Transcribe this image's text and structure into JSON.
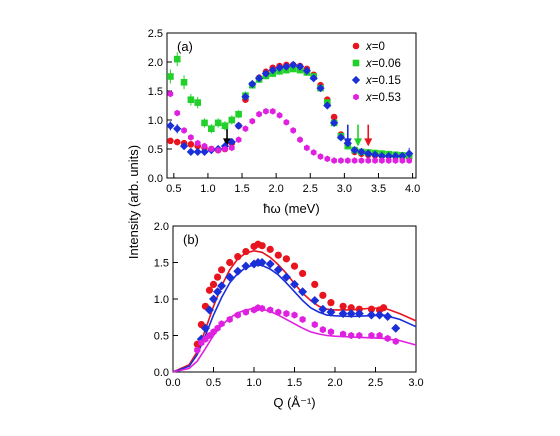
{
  "figure": {
    "ylabel": "Intensity (arb. units)"
  },
  "chart_data": [
    {
      "type": "scatter",
      "panel_label": "(a)",
      "xlabel": "ħω (meV)",
      "xlim": [
        0.4,
        4.05
      ],
      "ylim": [
        0.0,
        2.5
      ],
      "xticks": [
        "0.5",
        "1.0",
        "1.5",
        "2.0",
        "2.5",
        "3.0",
        "3.5",
        "4.0"
      ],
      "yticks": [
        "0.0",
        "0.5",
        "1.0",
        "1.5",
        "2.0",
        "2.5"
      ],
      "legend_position": "top-right",
      "series": [
        {
          "name": "x=0",
          "label_var": "x",
          "label_val": "=0",
          "color": "#e8141e",
          "marker": "circle",
          "x": [
            0.45,
            0.55,
            0.65,
            0.75,
            0.85,
            0.95,
            1.05,
            1.15,
            1.25,
            1.35,
            1.45,
            1.55,
            1.65,
            1.75,
            1.85,
            1.95,
            2.05,
            2.15,
            2.25,
            2.35,
            2.45,
            2.55,
            2.65,
            2.75,
            2.85,
            2.95,
            3.05,
            3.15,
            3.25,
            3.35,
            3.45,
            3.55,
            3.65,
            3.75,
            3.85,
            3.95
          ],
          "y": [
            0.64,
            0.62,
            0.6,
            0.58,
            0.55,
            0.52,
            0.5,
            0.48,
            0.5,
            0.6,
            0.9,
            1.35,
            1.6,
            1.73,
            1.83,
            1.9,
            1.93,
            1.95,
            1.95,
            1.93,
            1.88,
            1.78,
            1.6,
            1.35,
            1.05,
            0.75,
            0.55,
            0.45,
            0.42,
            0.4,
            0.39,
            0.38,
            0.38,
            0.37,
            0.37,
            0.37
          ]
        },
        {
          "name": "x=0.06",
          "label_var": "x",
          "label_val": "=0.06",
          "color": "#22d02a",
          "marker": "square",
          "x": [
            0.45,
            0.55,
            0.65,
            0.75,
            0.85,
            0.95,
            1.05,
            1.15,
            1.25,
            1.35,
            1.45,
            1.55,
            1.65,
            1.75,
            1.85,
            1.95,
            2.05,
            2.15,
            2.25,
            2.35,
            2.45,
            2.55,
            2.65,
            2.75,
            2.85,
            2.95,
            3.05,
            3.15,
            3.25,
            3.35,
            3.45,
            3.55,
            3.65,
            3.75,
            3.85,
            3.95
          ],
          "y": [
            1.75,
            2.05,
            1.65,
            1.35,
            1.3,
            0.95,
            0.85,
            0.95,
            0.9,
            1.0,
            1.1,
            1.42,
            1.6,
            1.7,
            1.76,
            1.8,
            1.84,
            1.86,
            1.88,
            1.86,
            1.82,
            1.75,
            1.55,
            1.3,
            0.95,
            0.72,
            0.55,
            0.48,
            0.45,
            0.44,
            0.43,
            0.42,
            0.41,
            0.4,
            0.39,
            0.38
          ],
          "errors": [
            0.12,
            0.12,
            0.12,
            0.1,
            0.1,
            0.08,
            0.08,
            0.08,
            0.08,
            0.08,
            0.07,
            0.07,
            0.06,
            0.06,
            0.06,
            0.06,
            0.06,
            0.06,
            0.06,
            0.06,
            0.06,
            0.06,
            0.06,
            0.06,
            0.06,
            0.06,
            0.06,
            0.06,
            0.06,
            0.06,
            0.06,
            0.06,
            0.06,
            0.06,
            0.06,
            0.06
          ]
        },
        {
          "name": "x=0.15",
          "label_var": "x",
          "label_val": "=0.15",
          "color": "#1a2fd8",
          "marker": "diamond",
          "x": [
            0.45,
            0.55,
            0.65,
            0.75,
            0.85,
            0.95,
            1.05,
            1.15,
            1.25,
            1.35,
            1.45,
            1.55,
            1.65,
            1.75,
            1.85,
            1.95,
            2.05,
            2.15,
            2.25,
            2.35,
            2.45,
            2.55,
            2.65,
            2.75,
            2.85,
            2.95,
            3.05,
            3.15,
            3.25,
            3.35,
            3.45,
            3.55,
            3.65,
            3.75,
            3.85,
            3.95
          ],
          "y": [
            0.9,
            0.85,
            0.55,
            0.45,
            0.45,
            0.45,
            0.48,
            0.5,
            0.55,
            0.62,
            0.9,
            1.4,
            1.62,
            1.72,
            1.8,
            1.86,
            1.9,
            1.92,
            1.95,
            1.92,
            1.85,
            1.72,
            1.55,
            1.25,
            0.95,
            0.7,
            0.6,
            0.48,
            0.45,
            0.42,
            0.4,
            0.38,
            0.38,
            0.38,
            0.38,
            0.42
          ],
          "errors": [
            0.08,
            0.08,
            0.06,
            0.05,
            0.05,
            0.05,
            0.05,
            0.05,
            0.05,
            0.05,
            0.05,
            0.05,
            0.05,
            0.05,
            0.05,
            0.05,
            0.05,
            0.05,
            0.05,
            0.05,
            0.05,
            0.05,
            0.05,
            0.05,
            0.05,
            0.05,
            0.05,
            0.05,
            0.05,
            0.05,
            0.05,
            0.05,
            0.05,
            0.05,
            0.05,
            0.1
          ]
        },
        {
          "name": "x=0.53",
          "label_var": "x",
          "label_val": "=0.53",
          "color": "#e020e0",
          "marker": "hexagon",
          "x": [
            0.45,
            0.55,
            0.65,
            0.75,
            0.85,
            0.95,
            1.05,
            1.15,
            1.25,
            1.35,
            1.45,
            1.55,
            1.65,
            1.75,
            1.85,
            1.95,
            2.05,
            2.15,
            2.25,
            2.35,
            2.45,
            2.55,
            2.65,
            2.75,
            2.85,
            2.95,
            3.05,
            3.15,
            3.25,
            3.35,
            3.45,
            3.55,
            3.65,
            3.75,
            3.85,
            3.95
          ],
          "y": [
            1.45,
            1.12,
            0.82,
            0.7,
            0.6,
            0.55,
            0.5,
            0.48,
            0.5,
            0.52,
            0.66,
            0.85,
            0.98,
            1.1,
            1.15,
            1.15,
            1.08,
            0.96,
            0.82,
            0.66,
            0.52,
            0.44,
            0.37,
            0.33,
            0.3,
            0.3,
            0.3,
            0.3,
            0.3,
            0.3,
            0.3,
            0.3,
            0.3,
            0.3,
            0.3,
            0.3
          ]
        }
      ],
      "arrows": [
        {
          "x": 1.28,
          "color": "#000000"
        },
        {
          "x": 3.05,
          "color": "#1a2fd8"
        },
        {
          "x": 3.2,
          "color": "#22d02a"
        },
        {
          "x": 3.35,
          "color": "#e8141e"
        }
      ]
    },
    {
      "type": "scatter",
      "panel_label": "(b)",
      "xlabel": "Q (Å⁻¹)",
      "xlim": [
        0.0,
        3.0
      ],
      "ylim": [
        0.0,
        2.0
      ],
      "xticks": [
        "0.0",
        "0.5",
        "1.0",
        "1.5",
        "2.0",
        "2.5",
        "3.0"
      ],
      "yticks": [
        "0.0",
        "0.5",
        "1.0",
        "1.5",
        "2.0"
      ],
      "series": [
        {
          "name": "x=0",
          "color": "#e8141e",
          "marker": "circle",
          "x": [
            0.3,
            0.35,
            0.4,
            0.45,
            0.5,
            0.55,
            0.6,
            0.7,
            0.8,
            0.9,
            1.0,
            1.05,
            1.1,
            1.2,
            1.3,
            1.4,
            1.5,
            1.6,
            1.75,
            1.85,
            1.95,
            2.1,
            2.2,
            2.3,
            2.45,
            2.55,
            2.6
          ],
          "y": [
            0.38,
            0.65,
            0.9,
            1.12,
            1.2,
            1.3,
            1.4,
            1.5,
            1.58,
            1.65,
            1.72,
            1.75,
            1.73,
            1.68,
            1.6,
            1.55,
            1.45,
            1.35,
            1.2,
            1.05,
            0.95,
            0.9,
            0.88,
            0.86,
            0.86,
            0.85,
            0.88
          ],
          "fit": [
            [
              0.0,
              0.0
            ],
            [
              0.2,
              0.1
            ],
            [
              0.3,
              0.28
            ],
            [
              0.4,
              0.58
            ],
            [
              0.5,
              0.9
            ],
            [
              0.6,
              1.18
            ],
            [
              0.7,
              1.4
            ],
            [
              0.8,
              1.55
            ],
            [
              0.9,
              1.63
            ],
            [
              1.0,
              1.66
            ],
            [
              1.1,
              1.64
            ],
            [
              1.2,
              1.57
            ],
            [
              1.3,
              1.47
            ],
            [
              1.4,
              1.35
            ],
            [
              1.5,
              1.21
            ],
            [
              1.6,
              1.08
            ],
            [
              1.7,
              0.98
            ],
            [
              1.8,
              0.9
            ],
            [
              1.9,
              0.86
            ],
            [
              2.0,
              0.85
            ],
            [
              2.2,
              0.85
            ],
            [
              2.4,
              0.87
            ],
            [
              2.6,
              0.88
            ],
            [
              2.8,
              0.8
            ],
            [
              3.0,
              0.7
            ]
          ]
        },
        {
          "name": "x=0.15",
          "color": "#1a2fd8",
          "marker": "diamond",
          "x": [
            0.35,
            0.4,
            0.45,
            0.5,
            0.55,
            0.6,
            0.7,
            0.8,
            0.9,
            1.0,
            1.05,
            1.1,
            1.2,
            1.3,
            1.4,
            1.5,
            1.6,
            1.75,
            1.85,
            1.95,
            2.1,
            2.2,
            2.3,
            2.45,
            2.55,
            2.65,
            2.75
          ],
          "y": [
            0.45,
            0.6,
            0.85,
            1.0,
            1.1,
            1.18,
            1.3,
            1.38,
            1.45,
            1.48,
            1.5,
            1.5,
            1.48,
            1.4,
            1.3,
            1.2,
            1.1,
            0.98,
            0.86,
            0.82,
            0.8,
            0.8,
            0.8,
            0.78,
            0.78,
            0.76,
            0.6
          ],
          "fit": [
            [
              0.0,
              0.0
            ],
            [
              0.2,
              0.08
            ],
            [
              0.3,
              0.24
            ],
            [
              0.4,
              0.5
            ],
            [
              0.5,
              0.78
            ],
            [
              0.6,
              1.02
            ],
            [
              0.7,
              1.22
            ],
            [
              0.8,
              1.35
            ],
            [
              0.9,
              1.43
            ],
            [
              1.0,
              1.47
            ],
            [
              1.1,
              1.46
            ],
            [
              1.2,
              1.41
            ],
            [
              1.3,
              1.33
            ],
            [
              1.4,
              1.22
            ],
            [
              1.5,
              1.1
            ],
            [
              1.6,
              0.98
            ],
            [
              1.7,
              0.88
            ],
            [
              1.8,
              0.82
            ],
            [
              1.9,
              0.78
            ],
            [
              2.0,
              0.77
            ],
            [
              2.2,
              0.76
            ],
            [
              2.4,
              0.77
            ],
            [
              2.6,
              0.78
            ],
            [
              2.8,
              0.72
            ],
            [
              3.0,
              0.62
            ]
          ]
        },
        {
          "name": "x=0.53",
          "color": "#e020e0",
          "marker": "hexagon",
          "x": [
            0.3,
            0.35,
            0.4,
            0.45,
            0.5,
            0.55,
            0.6,
            0.7,
            0.8,
            0.9,
            1.0,
            1.05,
            1.1,
            1.2,
            1.3,
            1.4,
            1.5,
            1.6,
            1.75,
            1.85,
            1.95,
            2.1,
            2.2,
            2.3,
            2.45,
            2.55,
            2.65,
            2.75
          ],
          "y": [
            0.3,
            0.4,
            0.45,
            0.5,
            0.55,
            0.6,
            0.66,
            0.72,
            0.78,
            0.82,
            0.85,
            0.88,
            0.87,
            0.85,
            0.82,
            0.8,
            0.78,
            0.72,
            0.65,
            0.58,
            0.55,
            0.52,
            0.5,
            0.5,
            0.5,
            0.5,
            0.46,
            0.42
          ],
          "fit": [
            [
              0.0,
              0.0
            ],
            [
              0.2,
              0.05
            ],
            [
              0.3,
              0.15
            ],
            [
              0.4,
              0.32
            ],
            [
              0.5,
              0.5
            ],
            [
              0.6,
              0.64
            ],
            [
              0.7,
              0.74
            ],
            [
              0.8,
              0.81
            ],
            [
              0.9,
              0.85
            ],
            [
              1.0,
              0.87
            ],
            [
              1.1,
              0.86
            ],
            [
              1.2,
              0.83
            ],
            [
              1.3,
              0.78
            ],
            [
              1.4,
              0.72
            ],
            [
              1.5,
              0.66
            ],
            [
              1.6,
              0.6
            ],
            [
              1.7,
              0.55
            ],
            [
              1.8,
              0.52
            ],
            [
              1.9,
              0.5
            ],
            [
              2.0,
              0.49
            ],
            [
              2.2,
              0.48
            ],
            [
              2.4,
              0.47
            ],
            [
              2.6,
              0.46
            ],
            [
              2.8,
              0.43
            ],
            [
              3.0,
              0.37
            ]
          ]
        }
      ]
    }
  ]
}
